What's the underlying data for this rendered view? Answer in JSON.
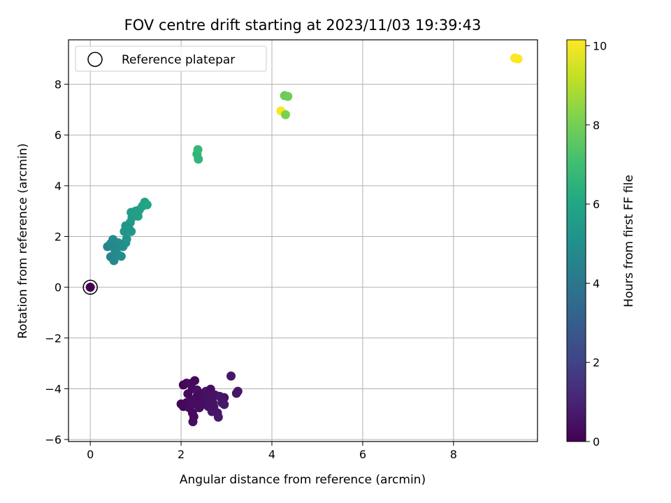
{
  "chart_data": {
    "type": "scatter",
    "title": "FOV centre drift starting at 2023/11/03 19:39:43",
    "xlabel": "Angular distance from reference (arcmin)",
    "ylabel": "Rotation from reference (arcmin)",
    "xlim": [
      -0.48,
      9.85
    ],
    "ylim": [
      -6.08,
      9.75
    ],
    "x_ticks": [
      0,
      2,
      4,
      6,
      8
    ],
    "y_ticks": [
      -6,
      -4,
      -2,
      0,
      2,
      4,
      6,
      8
    ],
    "x_tick_labels": [
      "0",
      "2",
      "4",
      "6",
      "8"
    ],
    "y_tick_labels": [
      "−6",
      "−4",
      "−2",
      "0",
      "2",
      "4",
      "6",
      "8"
    ],
    "grid": true,
    "legend": {
      "location": "upper-left",
      "entries": [
        "Reference platepar"
      ]
    },
    "colorbar": {
      "label": "Hours from first FF file",
      "colormap": "viridis",
      "range": [
        0,
        10.15
      ],
      "ticks": [
        0,
        2,
        4,
        6,
        8,
        10
      ],
      "tick_labels": [
        "0",
        "2",
        "4",
        "6",
        "8",
        "10"
      ]
    },
    "reference_point": {
      "x": 0,
      "y": 0,
      "hours": 0
    },
    "points": [
      {
        "x": 2.05,
        "y": -3.85,
        "c": 0.1
      },
      {
        "x": 2.12,
        "y": -3.78,
        "c": 0.2
      },
      {
        "x": 2.2,
        "y": -3.8,
        "c": 0.3
      },
      {
        "x": 2.3,
        "y": -3.68,
        "c": 0.2
      },
      {
        "x": 2.25,
        "y": -4.0,
        "c": 0.3
      },
      {
        "x": 2.35,
        "y": -4.05,
        "c": 0.4
      },
      {
        "x": 2.45,
        "y": -4.2,
        "c": 0.3
      },
      {
        "x": 2.55,
        "y": -4.1,
        "c": 0.5
      },
      {
        "x": 2.65,
        "y": -4.02,
        "c": 0.4
      },
      {
        "x": 2.75,
        "y": -4.25,
        "c": 0.5
      },
      {
        "x": 2.85,
        "y": -4.3,
        "c": 0.6
      },
      {
        "x": 2.95,
        "y": -4.35,
        "c": 0.5
      },
      {
        "x": 3.1,
        "y": -3.5,
        "c": 0.6
      },
      {
        "x": 3.25,
        "y": -4.1,
        "c": 0.7
      },
      {
        "x": 3.22,
        "y": -4.18,
        "c": 0.6
      },
      {
        "x": 2.0,
        "y": -4.6,
        "c": 0.1
      },
      {
        "x": 2.05,
        "y": -4.7,
        "c": 0.2
      },
      {
        "x": 2.12,
        "y": -4.55,
        "c": 0.2
      },
      {
        "x": 2.18,
        "y": -4.75,
        "c": 0.3
      },
      {
        "x": 2.25,
        "y": -4.45,
        "c": 0.3
      },
      {
        "x": 2.3,
        "y": -4.6,
        "c": 0.4
      },
      {
        "x": 2.25,
        "y": -4.95,
        "c": 0.2
      },
      {
        "x": 2.26,
        "y": -5.3,
        "c": 0.4
      },
      {
        "x": 2.28,
        "y": -5.1,
        "c": 0.3
      },
      {
        "x": 2.4,
        "y": -4.5,
        "c": 0.4
      },
      {
        "x": 2.48,
        "y": -4.62,
        "c": 0.5
      },
      {
        "x": 2.55,
        "y": -4.45,
        "c": 0.4
      },
      {
        "x": 2.6,
        "y": -4.7,
        "c": 0.5
      },
      {
        "x": 2.68,
        "y": -4.9,
        "c": 0.6
      },
      {
        "x": 2.72,
        "y": -4.72,
        "c": 0.5
      },
      {
        "x": 2.8,
        "y": -4.95,
        "c": 0.6
      },
      {
        "x": 2.82,
        "y": -5.12,
        "c": 0.7
      },
      {
        "x": 2.9,
        "y": -4.55,
        "c": 0.6
      },
      {
        "x": 2.95,
        "y": -4.62,
        "c": 0.7
      },
      {
        "x": 2.35,
        "y": -4.3,
        "c": 0.3
      },
      {
        "x": 2.5,
        "y": -4.3,
        "c": 0.4
      },
      {
        "x": 2.62,
        "y": -4.35,
        "c": 0.5
      },
      {
        "x": 2.7,
        "y": -4.55,
        "c": 0.5
      },
      {
        "x": 2.15,
        "y": -4.2,
        "c": 0.2
      },
      {
        "x": 2.4,
        "y": -4.75,
        "c": 0.4
      },
      {
        "x": 0.38,
        "y": 1.6,
        "c": 4.6
      },
      {
        "x": 0.45,
        "y": 1.72,
        "c": 4.7
      },
      {
        "x": 0.5,
        "y": 1.88,
        "c": 4.8
      },
      {
        "x": 0.58,
        "y": 1.55,
        "c": 4.9
      },
      {
        "x": 0.62,
        "y": 1.75,
        "c": 5.0
      },
      {
        "x": 0.55,
        "y": 1.4,
        "c": 4.7
      },
      {
        "x": 0.45,
        "y": 1.2,
        "c": 4.6
      },
      {
        "x": 0.52,
        "y": 1.05,
        "c": 4.7
      },
      {
        "x": 0.6,
        "y": 1.3,
        "c": 4.8
      },
      {
        "x": 0.68,
        "y": 1.22,
        "c": 4.9
      },
      {
        "x": 0.72,
        "y": 1.6,
        "c": 5.0
      },
      {
        "x": 0.78,
        "y": 1.75,
        "c": 5.1
      },
      {
        "x": 0.8,
        "y": 1.9,
        "c": 5.2
      },
      {
        "x": 0.75,
        "y": 2.2,
        "c": 5.3
      },
      {
        "x": 0.78,
        "y": 2.42,
        "c": 5.4
      },
      {
        "x": 0.85,
        "y": 2.3,
        "c": 5.3
      },
      {
        "x": 0.9,
        "y": 2.2,
        "c": 5.4
      },
      {
        "x": 0.88,
        "y": 2.55,
        "c": 5.5
      },
      {
        "x": 0.92,
        "y": 2.75,
        "c": 5.5
      },
      {
        "x": 0.9,
        "y": 2.95,
        "c": 5.6
      },
      {
        "x": 0.98,
        "y": 2.9,
        "c": 5.6
      },
      {
        "x": 1.05,
        "y": 2.8,
        "c": 5.7
      },
      {
        "x": 1.08,
        "y": 3.05,
        "c": 5.7
      },
      {
        "x": 1.15,
        "y": 3.2,
        "c": 5.8
      },
      {
        "x": 1.2,
        "y": 3.35,
        "c": 5.8
      },
      {
        "x": 1.25,
        "y": 3.25,
        "c": 5.9
      },
      {
        "x": 0.5,
        "y": 1.6,
        "c": 4.7
      },
      {
        "x": 0.66,
        "y": 1.7,
        "c": 4.9
      },
      {
        "x": 0.82,
        "y": 2.35,
        "c": 5.3
      },
      {
        "x": 1.0,
        "y": 3.0,
        "c": 5.6
      },
      {
        "x": 2.35,
        "y": 5.25,
        "c": 6.6
      },
      {
        "x": 2.37,
        "y": 5.42,
        "c": 6.7
      },
      {
        "x": 2.38,
        "y": 5.05,
        "c": 6.6
      },
      {
        "x": 4.2,
        "y": 6.95,
        "c": 10.1
      },
      {
        "x": 4.3,
        "y": 6.8,
        "c": 8.1
      },
      {
        "x": 4.28,
        "y": 7.55,
        "c": 7.8
      },
      {
        "x": 4.35,
        "y": 7.52,
        "c": 7.9
      },
      {
        "x": 9.35,
        "y": 9.03,
        "c": 10.1
      },
      {
        "x": 9.42,
        "y": 9.0,
        "c": 10.15
      }
    ]
  }
}
